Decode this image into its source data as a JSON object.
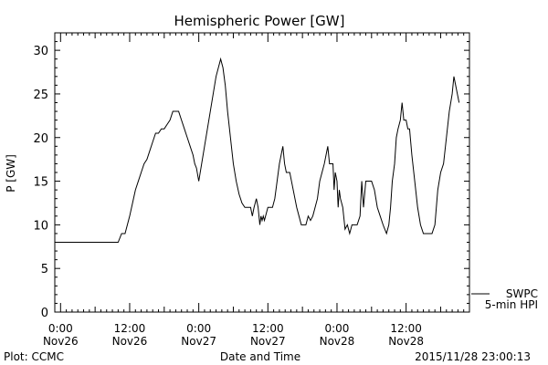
{
  "chart_data": {
    "type": "line",
    "title": "Hemispheric Power [GW]",
    "xlabel": "Date and Time",
    "ylabel": "P [GW]",
    "ylim": [
      0,
      32
    ],
    "xlim_hours": [
      -1,
      71
    ],
    "yticks": [
      0,
      5,
      10,
      15,
      20,
      25,
      30
    ],
    "xticks": [
      {
        "hour": 0,
        "time": "0:00",
        "date": "Nov26"
      },
      {
        "hour": 12,
        "time": "12:00",
        "date": "Nov26"
      },
      {
        "hour": 24,
        "time": "0:00",
        "date": "Nov27"
      },
      {
        "hour": 36,
        "time": "12:00",
        "date": "Nov27"
      },
      {
        "hour": 48,
        "time": "0:00",
        "date": "Nov28"
      },
      {
        "hour": 60,
        "time": "12:00",
        "date": "Nov28"
      }
    ],
    "legend": {
      "position": "right-outside-bottom",
      "entries": [
        "SWPC",
        "5-min HPI"
      ]
    },
    "series": [
      {
        "name": "SWPC",
        "color": "#000000",
        "points": [
          [
            -1,
            8
          ],
          [
            10,
            8
          ],
          [
            10.6,
            9
          ],
          [
            11.2,
            9
          ],
          [
            11.6,
            10
          ],
          [
            12,
            11
          ],
          [
            12.5,
            12.5
          ],
          [
            13,
            14
          ],
          [
            13.5,
            15
          ],
          [
            14,
            16
          ],
          [
            14.5,
            17
          ],
          [
            15,
            17.5
          ],
          [
            15.5,
            18.5
          ],
          [
            16,
            19.5
          ],
          [
            16.5,
            20.5
          ],
          [
            17,
            20.5
          ],
          [
            17.5,
            21
          ],
          [
            18,
            21
          ],
          [
            18.5,
            21.5
          ],
          [
            19,
            22
          ],
          [
            19.5,
            23
          ],
          [
            20,
            23
          ],
          [
            20.5,
            23
          ],
          [
            21,
            22
          ],
          [
            21.5,
            21
          ],
          [
            22,
            20
          ],
          [
            22.5,
            19
          ],
          [
            23,
            18
          ],
          [
            23.3,
            17
          ],
          [
            23.6,
            16.5
          ],
          [
            24,
            15
          ],
          [
            24.5,
            17
          ],
          [
            25,
            19
          ],
          [
            25.5,
            21
          ],
          [
            26,
            23
          ],
          [
            26.5,
            25
          ],
          [
            27,
            27
          ],
          [
            27.4,
            28
          ],
          [
            27.8,
            29
          ],
          [
            28.2,
            28
          ],
          [
            28.6,
            26
          ],
          [
            29,
            23
          ],
          [
            29.5,
            20
          ],
          [
            30,
            17
          ],
          [
            30.5,
            15
          ],
          [
            31,
            13.5
          ],
          [
            31.5,
            12.5
          ],
          [
            32,
            12
          ],
          [
            32.5,
            12
          ],
          [
            33,
            12
          ],
          [
            33.3,
            11
          ],
          [
            33.6,
            12
          ],
          [
            34,
            13
          ],
          [
            34.3,
            12
          ],
          [
            34.6,
            10
          ],
          [
            34.8,
            11
          ],
          [
            35,
            10.5
          ],
          [
            35.2,
            11
          ],
          [
            35.4,
            10.5
          ],
          [
            35.6,
            11
          ],
          [
            36,
            12
          ],
          [
            36.4,
            12
          ],
          [
            36.8,
            12
          ],
          [
            37.2,
            13
          ],
          [
            37.6,
            15
          ],
          [
            38,
            17
          ],
          [
            38.3,
            18
          ],
          [
            38.6,
            19
          ],
          [
            38.9,
            17
          ],
          [
            39.2,
            16
          ],
          [
            39.5,
            16
          ],
          [
            39.8,
            16
          ],
          [
            40.1,
            15
          ],
          [
            40.4,
            14
          ],
          [
            40.7,
            13
          ],
          [
            41,
            12
          ],
          [
            41.4,
            11
          ],
          [
            41.8,
            10
          ],
          [
            42.2,
            10
          ],
          [
            42.6,
            10
          ],
          [
            43,
            11
          ],
          [
            43.4,
            10.5
          ],
          [
            43.8,
            11
          ],
          [
            44.2,
            12
          ],
          [
            44.6,
            13
          ],
          [
            45,
            15
          ],
          [
            45.4,
            16
          ],
          [
            45.8,
            17
          ],
          [
            46.1,
            18
          ],
          [
            46.4,
            19
          ],
          [
            46.7,
            17
          ],
          [
            47,
            17
          ],
          [
            47.3,
            17
          ],
          [
            47.5,
            14
          ],
          [
            47.7,
            16
          ],
          [
            48,
            15
          ],
          [
            48.2,
            12
          ],
          [
            48.4,
            14
          ],
          [
            48.6,
            13
          ],
          [
            49,
            12
          ],
          [
            49.4,
            9.5
          ],
          [
            49.8,
            10
          ],
          [
            50.2,
            9
          ],
          [
            50.6,
            10
          ],
          [
            51,
            10
          ],
          [
            51.5,
            10
          ],
          [
            52,
            11
          ],
          [
            52.3,
            15
          ],
          [
            52.6,
            12
          ],
          [
            53,
            15
          ],
          [
            53.5,
            15
          ],
          [
            54,
            15
          ],
          [
            54.5,
            14
          ],
          [
            55,
            12
          ],
          [
            55.5,
            11
          ],
          [
            56,
            10
          ],
          [
            56.3,
            9.5
          ],
          [
            56.6,
            9
          ],
          [
            57,
            10
          ],
          [
            57.3,
            12
          ],
          [
            57.6,
            15
          ],
          [
            58,
            17
          ],
          [
            58.3,
            20
          ],
          [
            58.6,
            21
          ],
          [
            59,
            22
          ],
          [
            59.3,
            24
          ],
          [
            59.6,
            22
          ],
          [
            60,
            22
          ],
          [
            60.3,
            21
          ],
          [
            60.6,
            21
          ],
          [
            61,
            18
          ],
          [
            61.5,
            15
          ],
          [
            62,
            12
          ],
          [
            62.5,
            10
          ],
          [
            63,
            9
          ],
          [
            63.5,
            9
          ],
          [
            64,
            9
          ],
          [
            64.5,
            9
          ],
          [
            65,
            10
          ],
          [
            65.5,
            14
          ],
          [
            66,
            16
          ],
          [
            66.5,
            17
          ],
          [
            67,
            20
          ],
          [
            67.5,
            23
          ],
          [
            68,
            25
          ],
          [
            68.3,
            27
          ],
          [
            68.6,
            26
          ],
          [
            68.9,
            25
          ],
          [
            69.2,
            24
          ]
        ]
      }
    ],
    "footer": {
      "left": "Plot: CCMC",
      "right": "2015/11/28 23:00:13"
    }
  }
}
